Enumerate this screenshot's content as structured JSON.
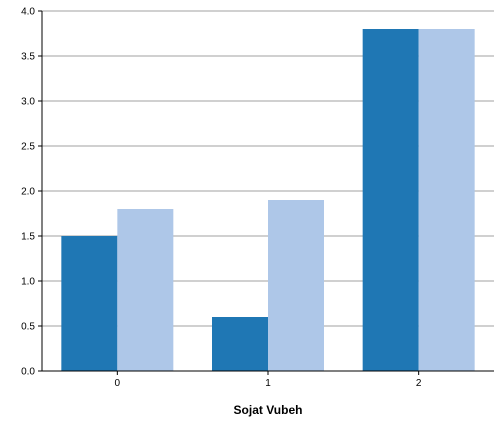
{
  "chart_data": {
    "type": "bar",
    "categories": [
      "0",
      "1",
      "2"
    ],
    "series": [
      {
        "values": [
          1.5,
          0.6,
          3.8
        ],
        "color": "#1f77b4"
      },
      {
        "values": [
          1.8,
          1.9,
          3.8
        ],
        "color": "#aec7e8"
      }
    ],
    "xlabel": "Sojat Vubeh",
    "ylabel": "",
    "ylim": [
      0,
      4.0
    ],
    "yticks": [
      "0.0",
      "0.5",
      "1.0",
      "1.5",
      "2.0",
      "2.5",
      "3.0",
      "3.5",
      "4.0"
    ],
    "grid": true,
    "legend": "none"
  }
}
